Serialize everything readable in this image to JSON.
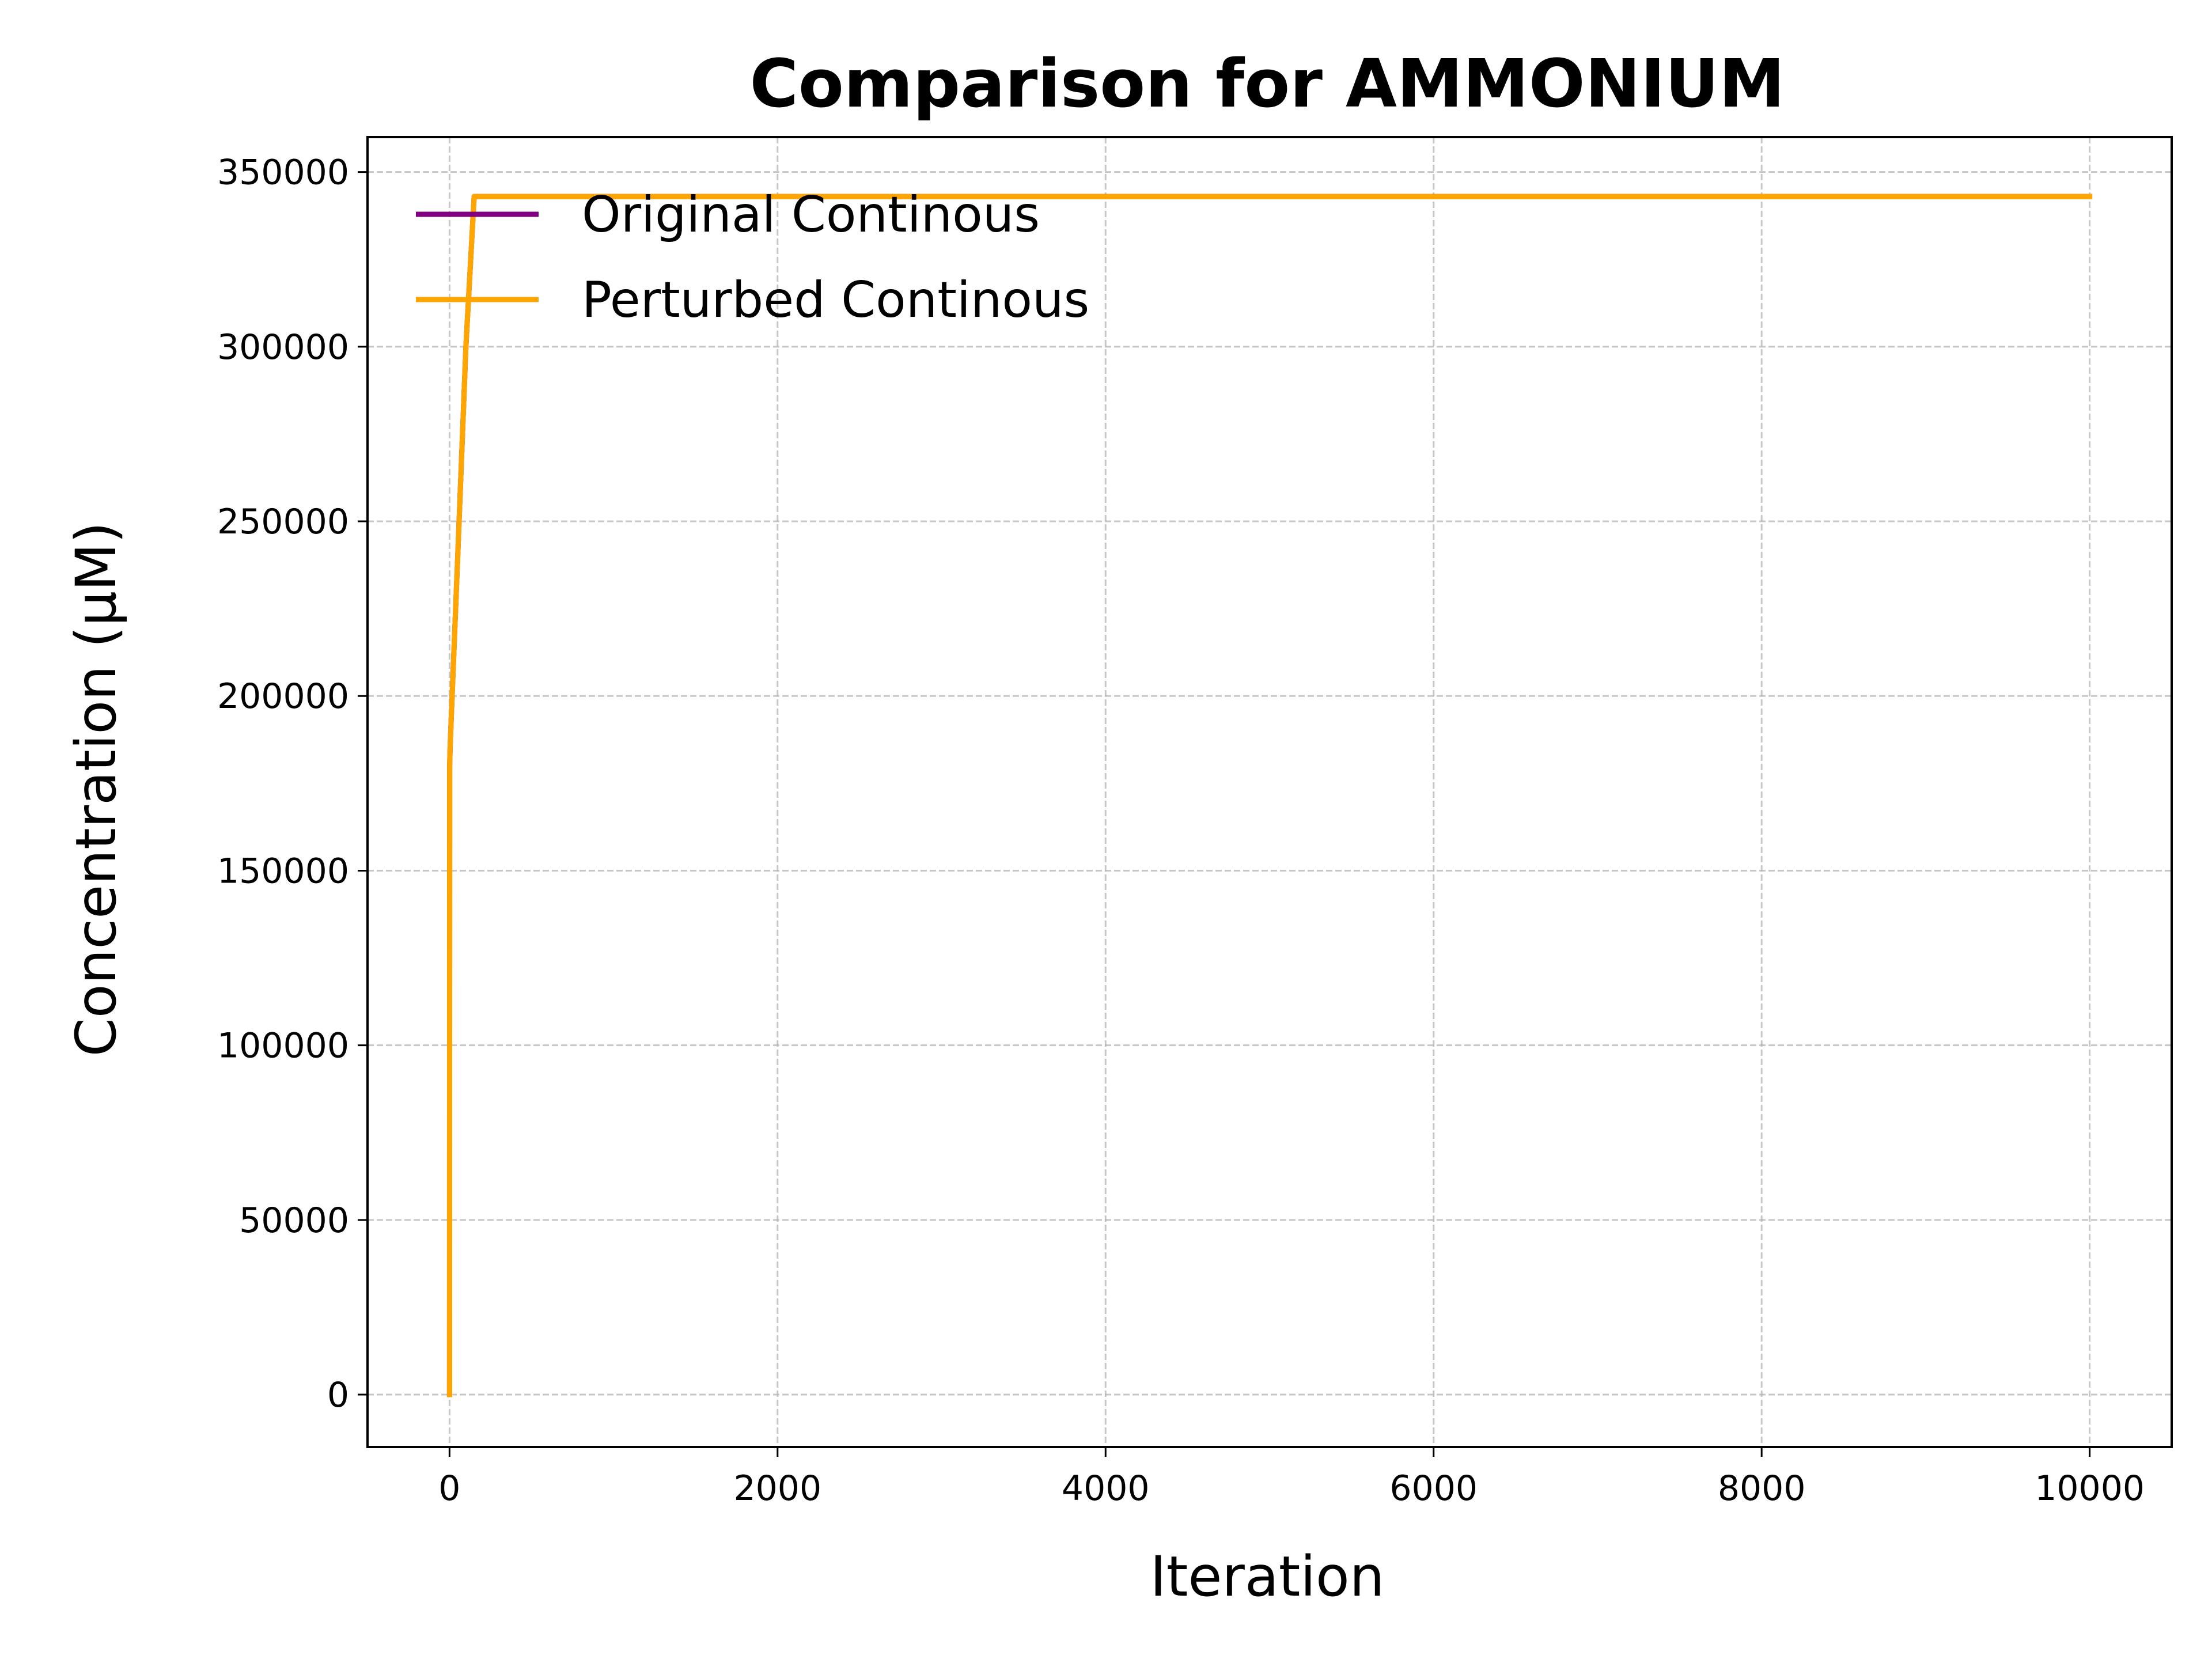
{
  "chart_data": {
    "type": "line",
    "title": "Comparison for AMMONIUM",
    "xlabel": "Iteration",
    "ylabel": "Concentration (μM)",
    "xlim": [
      -500,
      10500
    ],
    "ylim": [
      -15000,
      360000
    ],
    "xticks": [
      0,
      2000,
      4000,
      6000,
      8000,
      10000
    ],
    "yticks": [
      0,
      50000,
      100000,
      150000,
      200000,
      250000,
      300000,
      350000
    ],
    "grid": true,
    "legend_position": "top-left",
    "series": [
      {
        "name": "Original Continous",
        "color": "#800080",
        "x": [
          0,
          1,
          2,
          3,
          5,
          10,
          20,
          50,
          100,
          150,
          10000
        ],
        "y": [
          0,
          180000,
          182000,
          184000,
          187000,
          193000,
          205000,
          240000,
          300000,
          343000,
          343000
        ]
      },
      {
        "name": "Perturbed Continous",
        "color": "#FFA500",
        "x": [
          0,
          1,
          2,
          3,
          5,
          10,
          20,
          50,
          100,
          150,
          10000
        ],
        "y": [
          0,
          180000,
          182000,
          184000,
          187000,
          193000,
          205000,
          240000,
          300000,
          343000,
          343000
        ]
      }
    ]
  }
}
